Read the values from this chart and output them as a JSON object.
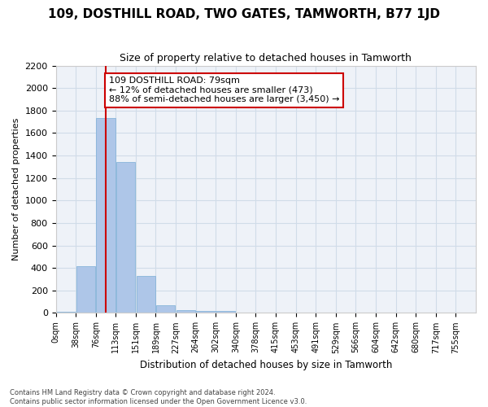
{
  "title": "109, DOSTHILL ROAD, TWO GATES, TAMWORTH, B77 1JD",
  "subtitle": "Size of property relative to detached houses in Tamworth",
  "xlabel": "Distribution of detached houses by size in Tamworth",
  "ylabel": "Number of detached properties",
  "bar_color": "#aec6e8",
  "bar_edge_color": "#7aaed6",
  "grid_color": "#d0dce8",
  "background_color": "#eef2f8",
  "annotation_box_color": "#cc0000",
  "vline_color": "#cc0000",
  "bin_labels": [
    "0sqm",
    "38sqm",
    "76sqm",
    "113sqm",
    "151sqm",
    "189sqm",
    "227sqm",
    "264sqm",
    "302sqm",
    "340sqm",
    "378sqm",
    "415sqm",
    "453sqm",
    "491sqm",
    "529sqm",
    "566sqm",
    "604sqm",
    "642sqm",
    "680sqm",
    "717sqm",
    "755sqm"
  ],
  "bar_values": [
    10,
    415,
    1730,
    1345,
    330,
    70,
    25,
    15,
    20,
    0,
    0,
    0,
    0,
    0,
    0,
    0,
    0,
    0,
    0,
    0,
    0
  ],
  "vline_x": 2,
  "annotation_text": "109 DOSTHILL ROAD: 79sqm\n← 12% of detached houses are smaller (473)\n88% of semi-detached houses are larger (3,450) →",
  "ylim": [
    0,
    2200
  ],
  "yticks": [
    0,
    200,
    400,
    600,
    800,
    1000,
    1200,
    1400,
    1600,
    1800,
    2000,
    2200
  ],
  "footer_line1": "Contains HM Land Registry data © Crown copyright and database right 2024.",
  "footer_line2": "Contains public sector information licensed under the Open Government Licence v3.0."
}
